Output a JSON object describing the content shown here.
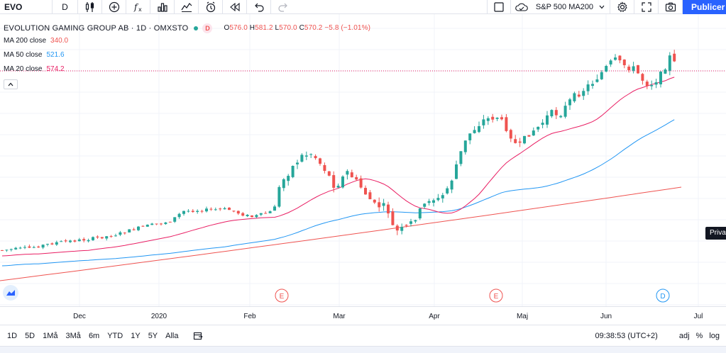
{
  "toolbar": {
    "symbol": "EVO",
    "interval": "D",
    "icons": [
      "candles-icon",
      "add-indicator-icon",
      "fx-indicators-icon",
      "bar-chart-icon",
      "templates-icon",
      "alert-icon",
      "replay-icon",
      "undo-icon",
      "redo-icon"
    ],
    "compare_label": "S&P 500 MA200",
    "publish_label": "Publicer"
  },
  "legend": {
    "title": "EVOLUTION GAMING GROUP AB · 1D · OMXSTO",
    "badge": "D",
    "open_label": "O",
    "open": "576.0",
    "high_label": "H",
    "high": "581.2",
    "low_label": "L",
    "low": "570.0",
    "close_label": "C",
    "close": "570.2",
    "change": "−5.8 (−1.01%)",
    "ma200_label": "MA 200 close",
    "ma200_value": "340.0",
    "ma50_label": "MA 50 close",
    "ma50_value": "521.6",
    "ma20_label": "MA 20 close",
    "ma20_value": "574.2"
  },
  "colors": {
    "up": "#26a69a",
    "down": "#ef5350",
    "ma200": "#ef5350",
    "ma50": "#2196f3",
    "ma20": "#e91e63",
    "accent": "#2962ff"
  },
  "private_tag": "Priva",
  "events": [
    {
      "label": "E",
      "type": "earnings"
    },
    {
      "label": "E",
      "type": "earnings"
    },
    {
      "label": "D",
      "type": "dividend"
    }
  ],
  "time_axis": [
    "Dec",
    "2020",
    "Feb",
    "Mar",
    "Apr",
    "Maj",
    "Jun",
    "Jul"
  ],
  "bottom_bar": {
    "ranges": [
      "1D",
      "5D",
      "1Må",
      "3Må",
      "6m",
      "YTD",
      "1Y",
      "5Y",
      "Alla"
    ],
    "clock": "09:38:53 (UTC+2)",
    "adj": "adj",
    "percent": "%",
    "log": "log"
  },
  "chart_data": {
    "type": "candlestick",
    "symbol": "EVO",
    "exchange": "OMXSTO",
    "interval": "1D",
    "price_line": 574.2,
    "series_summary": {
      "closes_approx": [
        348,
        349,
        350,
        351,
        352,
        352,
        353,
        354,
        356,
        358,
        359,
        361,
        362,
        363,
        364,
        365,
        366,
        367,
        368,
        369,
        371,
        372,
        374,
        375,
        376,
        378,
        379,
        381,
        382,
        383,
        384,
        385,
        387,
        389,
        390,
        392,
        393,
        394,
        396,
        397,
        398,
        399,
        400,
        402,
        403,
        405,
        407,
        408,
        410,
        411,
        412,
        414,
        415,
        416,
        417,
        418,
        419,
        421,
        422,
        424,
        425,
        426,
        427,
        428,
        429,
        430,
        431,
        432,
        433,
        434,
        435,
        436,
        437,
        438,
        439,
        440,
        441,
        442,
        443,
        444,
        446,
        447,
        448,
        449,
        451,
        452,
        454,
        455,
        457,
        458,
        459,
        460,
        461,
        462,
        463,
        465,
        466,
        467,
        468,
        470,
        472,
        474,
        476,
        478,
        480,
        482,
        484,
        486,
        488,
        490,
        492,
        494,
        496,
        498,
        500,
        502,
        504,
        506,
        508,
        510,
        512,
        514,
        516,
        518,
        520,
        522,
        524,
        526,
        528,
        530,
        532,
        534,
        536,
        538,
        540,
        542,
        544,
        546,
        548,
        550,
        552,
        554,
        556,
        558,
        560,
        562,
        564,
        566,
        568,
        570
      ]
    }
  }
}
